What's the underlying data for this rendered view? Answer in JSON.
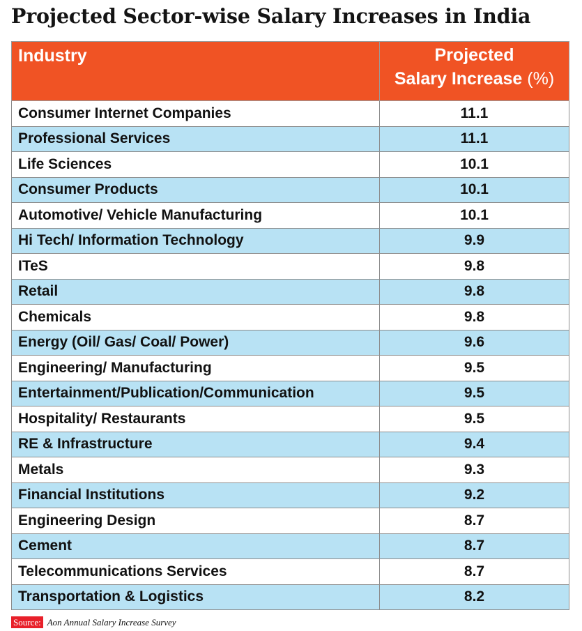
{
  "title": "Projected Sector-wise Salary Increases in India",
  "colors": {
    "header_bg": "#f05324",
    "row_alt_bg": "#b8e2f4",
    "row_bg": "#ffffff",
    "source_label_bg": "#e8202a"
  },
  "headers": {
    "industry": "Industry",
    "increase_line1": "Projected",
    "increase_line2": "Salary Increase",
    "increase_unit": "(%)"
  },
  "source": {
    "label": "Source:",
    "text": "Aon Annual Salary Increase Survey"
  },
  "chart_data": {
    "type": "table",
    "title": "Projected Sector-wise Salary Increases in India",
    "columns": [
      "Industry",
      "Projected Salary Increase (%)"
    ],
    "rows": [
      {
        "industry": "Consumer Internet Companies",
        "value": "11.1"
      },
      {
        "industry": "Professional Services",
        "value": "11.1"
      },
      {
        "industry": "Life Sciences",
        "value": "10.1"
      },
      {
        "industry": "Consumer Products",
        "value": "10.1"
      },
      {
        "industry": "Automotive/ Vehicle Manufacturing",
        "value": "10.1"
      },
      {
        "industry": "Hi Tech/ Information Technology",
        "value": "9.9"
      },
      {
        "industry": "ITeS",
        "value": "9.8"
      },
      {
        "industry": "Retail",
        "value": "9.8"
      },
      {
        "industry": "Chemicals",
        "value": "9.8"
      },
      {
        "industry": "Energy (Oil/ Gas/ Coal/ Power)",
        "value": "9.6"
      },
      {
        "industry": "Engineering/ Manufacturing",
        "value": "9.5"
      },
      {
        "industry": "Entertainment/Publication/Communication",
        "value": "9.5"
      },
      {
        "industry": "Hospitality/ Restaurants",
        "value": "9.5"
      },
      {
        "industry": "RE & Infrastructure",
        "value": "9.4"
      },
      {
        "industry": "Metals",
        "value": "9.3"
      },
      {
        "industry": "Financial Institutions",
        "value": "9.2"
      },
      {
        "industry": "Engineering Design",
        "value": "8.7"
      },
      {
        "industry": "Cement",
        "value": "8.7"
      },
      {
        "industry": "Telecommunications Services",
        "value": "8.7"
      },
      {
        "industry": "Transportation & Logistics",
        "value": "8.2"
      }
    ]
  }
}
